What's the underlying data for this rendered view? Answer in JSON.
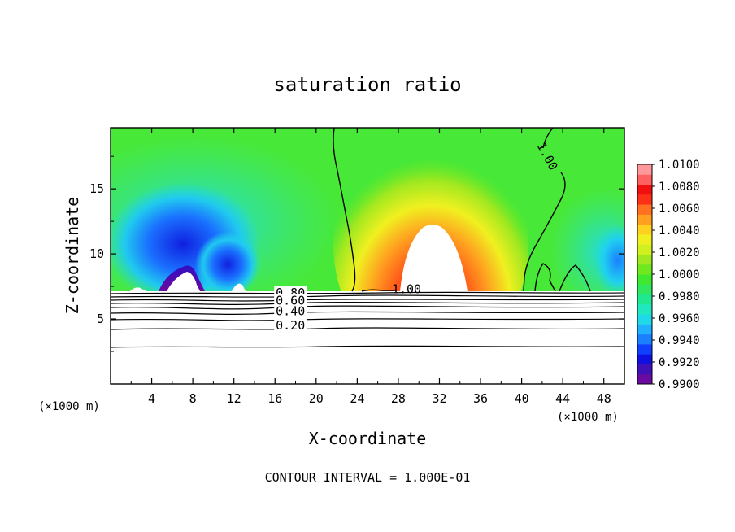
{
  "chart_data": {
    "type": "heatmap",
    "title": "saturation ratio",
    "xlabel": "X-coordinate",
    "ylabel": "Z-coordinate",
    "x_unit": "(×1000 m)",
    "x_unit_right": "(×1000 m)",
    "x_ticks": [
      4,
      8,
      12,
      16,
      20,
      24,
      28,
      32,
      36,
      40,
      44,
      48
    ],
    "y_ticks": [
      5,
      10,
      15
    ],
    "xlim": [
      0,
      50
    ],
    "ylim": [
      0,
      19.7
    ],
    "colorbar": {
      "labels": [
        "1.0100",
        "1.0080",
        "1.0060",
        "1.0040",
        "1.0020",
        "1.0000",
        "0.9980",
        "0.9960",
        "0.9940",
        "0.9920",
        "0.9900"
      ],
      "min": 0.99,
      "max": 1.01,
      "colors": [
        "#6a0aa0",
        "#4010b8",
        "#1010e0",
        "#1040ff",
        "#1a80ff",
        "#20b0ff",
        "#20d8e8",
        "#20e8c0",
        "#20e890",
        "#30e860",
        "#40e830",
        "#70e820",
        "#a0e820",
        "#d0f020",
        "#f0f020",
        "#ffd020",
        "#ffa020",
        "#ff7020",
        "#ff3018",
        "#f01010",
        "#ff6060",
        "#ff9898"
      ]
    },
    "contour_labels": [
      {
        "text": "1.00",
        "x": 42.5,
        "y": 17.5
      },
      {
        "text": "1.00",
        "x": 28.8,
        "y": 7.3
      },
      {
        "text": "0.80",
        "x": 17.5,
        "y": 7.0
      },
      {
        "text": "0.60",
        "x": 17.5,
        "y": 6.4
      },
      {
        "text": "0.40",
        "x": 17.5,
        "y": 5.6
      },
      {
        "text": "0.20",
        "x": 17.5,
        "y": 4.5
      }
    ],
    "contour_interval_text": "CONTOUR INTERVAL = 1.000E-01"
  }
}
